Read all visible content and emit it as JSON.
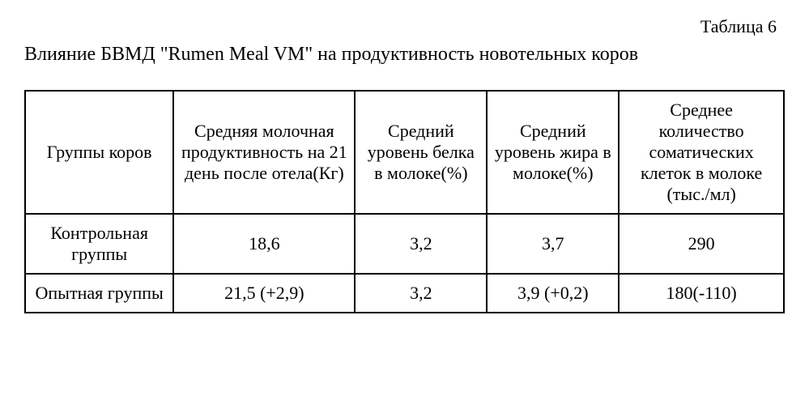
{
  "tableLabel": "Таблица 6",
  "title": "Влияние БВМД \"Rumen Meal VM\" на продуктивность новотельных коров",
  "table": {
    "columns": [
      "Группы коров",
      "Средняя молочная продуктивность на 21 день после отела(Кг)",
      "Средний уровень белка в молоке(%)",
      "Средний уровень жира в молоке(%)",
      "Среднее количество соматических клеток в молоке (тыс./мл)"
    ],
    "rows": [
      [
        "Контрольная группы",
        "18,6",
        "3,2",
        "3,7",
        "290"
      ],
      [
        "Опытная группы",
        "21,5 (+2,9)",
        "3,2",
        "3,9 (+0,2)",
        "180(-110)"
      ]
    ],
    "column_widths_pct": [
      18,
      22,
      16,
      16,
      20
    ],
    "border_color": "#000000",
    "background_color": "#ffffff",
    "font_family": "Times New Roman",
    "header_fontsize": 20,
    "cell_fontsize": 20
  }
}
